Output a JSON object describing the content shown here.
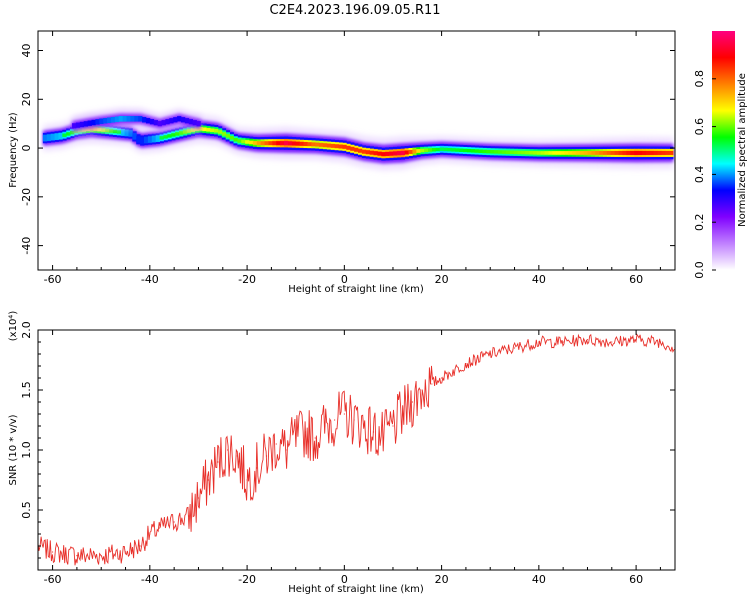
{
  "title": "C2E4.2023.196.09.05.R11",
  "chart_data": [
    {
      "type": "heatmap",
      "title": "C2E4.2023.196.09.05.R11",
      "xlabel": "Height of straight line (km)",
      "ylabel": "Frequency (Hz)",
      "xlim": [
        -63,
        68
      ],
      "ylim": [
        -50,
        48
      ],
      "xticks": [
        -60,
        -40,
        -20,
        0,
        20,
        40,
        60
      ],
      "yticks": [
        -40,
        -20,
        0,
        20,
        40
      ],
      "colorbar": {
        "label": "Normalized spectral amplitude",
        "range": [
          0,
          1
        ],
        "ticks": [
          "0.0",
          "0.2",
          "0.4",
          "0.6",
          "0.8"
        ],
        "colors": [
          "#ffffff",
          "#c080ff",
          "#8000ff",
          "#0000ff",
          "#00ffff",
          "#00ff00",
          "#ffff00",
          "#ff8000",
          "#ff0000",
          "#ff0080"
        ]
      },
      "ridge": {
        "x": [
          -62,
          -58,
          -55,
          -52,
          -48,
          -44,
          -42,
          -38,
          -34,
          -30,
          -26,
          -22,
          -18,
          -12,
          -6,
          0,
          4,
          8,
          12,
          16,
          20,
          30,
          40,
          50,
          60,
          67
        ],
        "freq": [
          4,
          5,
          7,
          8,
          7,
          6,
          3,
          4,
          6,
          8,
          7,
          3,
          2,
          2,
          1.5,
          0.5,
          -1.5,
          -2.5,
          -2,
          -1,
          -0.5,
          -1.5,
          -2,
          -2,
          -2,
          -2
        ],
        "amplitude": [
          0.45,
          0.5,
          0.55,
          0.7,
          0.55,
          0.45,
          0.4,
          0.5,
          0.55,
          0.65,
          0.6,
          0.55,
          0.7,
          0.9,
          0.75,
          0.8,
          0.8,
          0.85,
          0.9,
          0.6,
          0.5,
          0.55,
          0.6,
          0.7,
          0.85,
          0.8
        ]
      },
      "secondary_branch": {
        "x": [
          -56,
          -50,
          -46,
          -42,
          -38,
          -34,
          -30
        ],
        "freq": [
          9,
          11,
          12,
          12,
          10,
          12,
          10
        ],
        "amplitude": [
          0.3,
          0.4,
          0.45,
          0.4,
          0.3,
          0.35,
          0.3
        ]
      }
    },
    {
      "type": "line",
      "xlabel": "Height of straight line (km)",
      "ylabel": "SNR (10 * v/v)",
      "y_multiplier": "(x10⁴)",
      "xlim": [
        -63,
        68
      ],
      "ylim": [
        0,
        2.0
      ],
      "xticks": [
        -60,
        -40,
        -20,
        0,
        20,
        40,
        60
      ],
      "yticks": [
        0.5,
        1.0,
        1.5,
        2.0
      ],
      "series": [
        {
          "color": "#e8302a",
          "x": [
            -63,
            -60,
            -55,
            -50,
            -45,
            -42,
            -40,
            -38,
            -35,
            -32,
            -30,
            -28,
            -26,
            -24,
            -22,
            -20,
            -18,
            -16,
            -14,
            -12,
            -10,
            -8,
            -6,
            -4,
            -2,
            0,
            2,
            4,
            6,
            8,
            10,
            12,
            14,
            16,
            18,
            20,
            25,
            30,
            35,
            40,
            45,
            50,
            55,
            60,
            65,
            68
          ],
          "y": [
            0.2,
            0.15,
            0.12,
            0.12,
            0.15,
            0.2,
            0.3,
            0.35,
            0.4,
            0.45,
            0.6,
            0.75,
            0.9,
            1.0,
            0.95,
            0.75,
            0.85,
            0.95,
            1.05,
            1.0,
            1.1,
            1.15,
            1.1,
            1.2,
            1.25,
            1.3,
            1.25,
            1.2,
            1.15,
            1.1,
            1.2,
            1.3,
            1.4,
            1.5,
            1.55,
            1.6,
            1.72,
            1.8,
            1.85,
            1.9,
            1.9,
            1.92,
            1.9,
            1.92,
            1.9,
            1.85
          ]
        }
      ]
    }
  ]
}
